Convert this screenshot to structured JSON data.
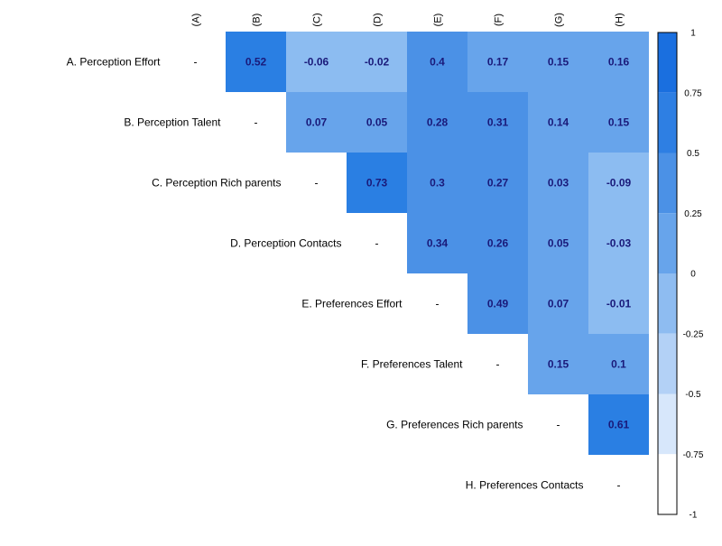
{
  "chart_data": {
    "type": "heatmap",
    "row_labels": [
      "A. Perception Effort",
      "B. Perception Talent",
      "C. Perception Rich parents",
      "D. Perception Contacts",
      "E. Preferences Effort",
      "F. Preferences Talent",
      "G. Preferences Rich parents",
      "H. Preferences Contacts"
    ],
    "column_labels": [
      "(A)",
      "(B)",
      "(C)",
      "(D)",
      "(E)",
      "(F)",
      "(G)",
      "(H)"
    ],
    "diagonal_symbol": "-",
    "values": [
      [
        null,
        0.52,
        -0.06,
        -0.02,
        0.4,
        0.17,
        0.15,
        0.16
      ],
      [
        null,
        null,
        0.07,
        0.05,
        0.28,
        0.31,
        0.14,
        0.15
      ],
      [
        null,
        null,
        null,
        0.73,
        0.3,
        0.27,
        0.03,
        -0.09
      ],
      [
        null,
        null,
        null,
        null,
        0.34,
        0.26,
        0.05,
        -0.03
      ],
      [
        null,
        null,
        null,
        null,
        null,
        0.49,
        0.07,
        -0.01
      ],
      [
        null,
        null,
        null,
        null,
        null,
        null,
        0.15,
        0.1
      ],
      [
        null,
        null,
        null,
        null,
        null,
        null,
        null,
        0.61
      ],
      [
        null,
        null,
        null,
        null,
        null,
        null,
        null,
        null
      ]
    ],
    "value_labels": [
      [
        null,
        "0.52",
        "-0.06",
        "-0.02",
        "0.4",
        "0.17",
        "0.15",
        "0.16"
      ],
      [
        null,
        null,
        "0.07",
        "0.05",
        "0.28",
        "0.31",
        "0.14",
        "0.15"
      ],
      [
        null,
        null,
        null,
        "0.73",
        "0.3",
        "0.27",
        "0.03",
        "-0.09"
      ],
      [
        null,
        null,
        null,
        null,
        "0.34",
        "0.26",
        "0.05",
        "-0.03"
      ],
      [
        null,
        null,
        null,
        null,
        null,
        "0.49",
        "0.07",
        "-0.01"
      ],
      [
        null,
        null,
        null,
        null,
        null,
        null,
        "0.15",
        "0.1"
      ],
      [
        null,
        null,
        null,
        null,
        null,
        null,
        null,
        "0.61"
      ],
      [
        null,
        null,
        null,
        null,
        null,
        null,
        null,
        null
      ]
    ],
    "colorbar": {
      "range": [
        -1,
        1
      ],
      "ticks": [
        "1",
        "0.75",
        "0.5",
        "0.25",
        "0",
        "-0.25",
        "-0.5",
        "-0.75",
        "-1"
      ],
      "bins": [
        {
          "from": 0.75,
          "to": 1,
          "color": "#1a6fdf"
        },
        {
          "from": 0.5,
          "to": 0.75,
          "color": "#2e7fe3"
        },
        {
          "from": 0.25,
          "to": 0.5,
          "color": "#4b91e6"
        },
        {
          "from": 0,
          "to": 0.25,
          "color": "#67a4eb"
        },
        {
          "from": -0.25,
          "to": 0,
          "color": "#8ebcf1"
        },
        {
          "from": -0.5,
          "to": -0.25,
          "color": "#b3d1f6"
        },
        {
          "from": -0.75,
          "to": -0.5,
          "color": "#d7e7fb"
        },
        {
          "from": -1,
          "to": -0.75,
          "color": "#ffffff"
        }
      ]
    },
    "value_text_color": "#1a1a7a",
    "cell_colors": [
      [
        null,
        "#2a7fe3",
        "#8cbcf1",
        "#8cbcf1",
        "#4b91e6",
        "#67a4eb",
        "#67a4eb",
        "#67a4eb"
      ],
      [
        null,
        null,
        "#67a4eb",
        "#67a4eb",
        "#4b91e6",
        "#4b91e6",
        "#67a4eb",
        "#67a4eb"
      ],
      [
        null,
        null,
        null,
        "#2a7fe3",
        "#4b91e6",
        "#4b91e6",
        "#67a4eb",
        "#8cbcf1"
      ],
      [
        null,
        null,
        null,
        null,
        "#4b91e6",
        "#4b91e6",
        "#67a4eb",
        "#8cbcf1"
      ],
      [
        null,
        null,
        null,
        null,
        null,
        "#4b91e6",
        "#67a4eb",
        "#8cbcf1"
      ],
      [
        null,
        null,
        null,
        null,
        null,
        null,
        "#67a4eb",
        "#67a4eb"
      ],
      [
        null,
        null,
        null,
        null,
        null,
        null,
        null,
        "#2a7fe3"
      ],
      [
        null,
        null,
        null,
        null,
        null,
        null,
        null,
        null
      ]
    ]
  }
}
